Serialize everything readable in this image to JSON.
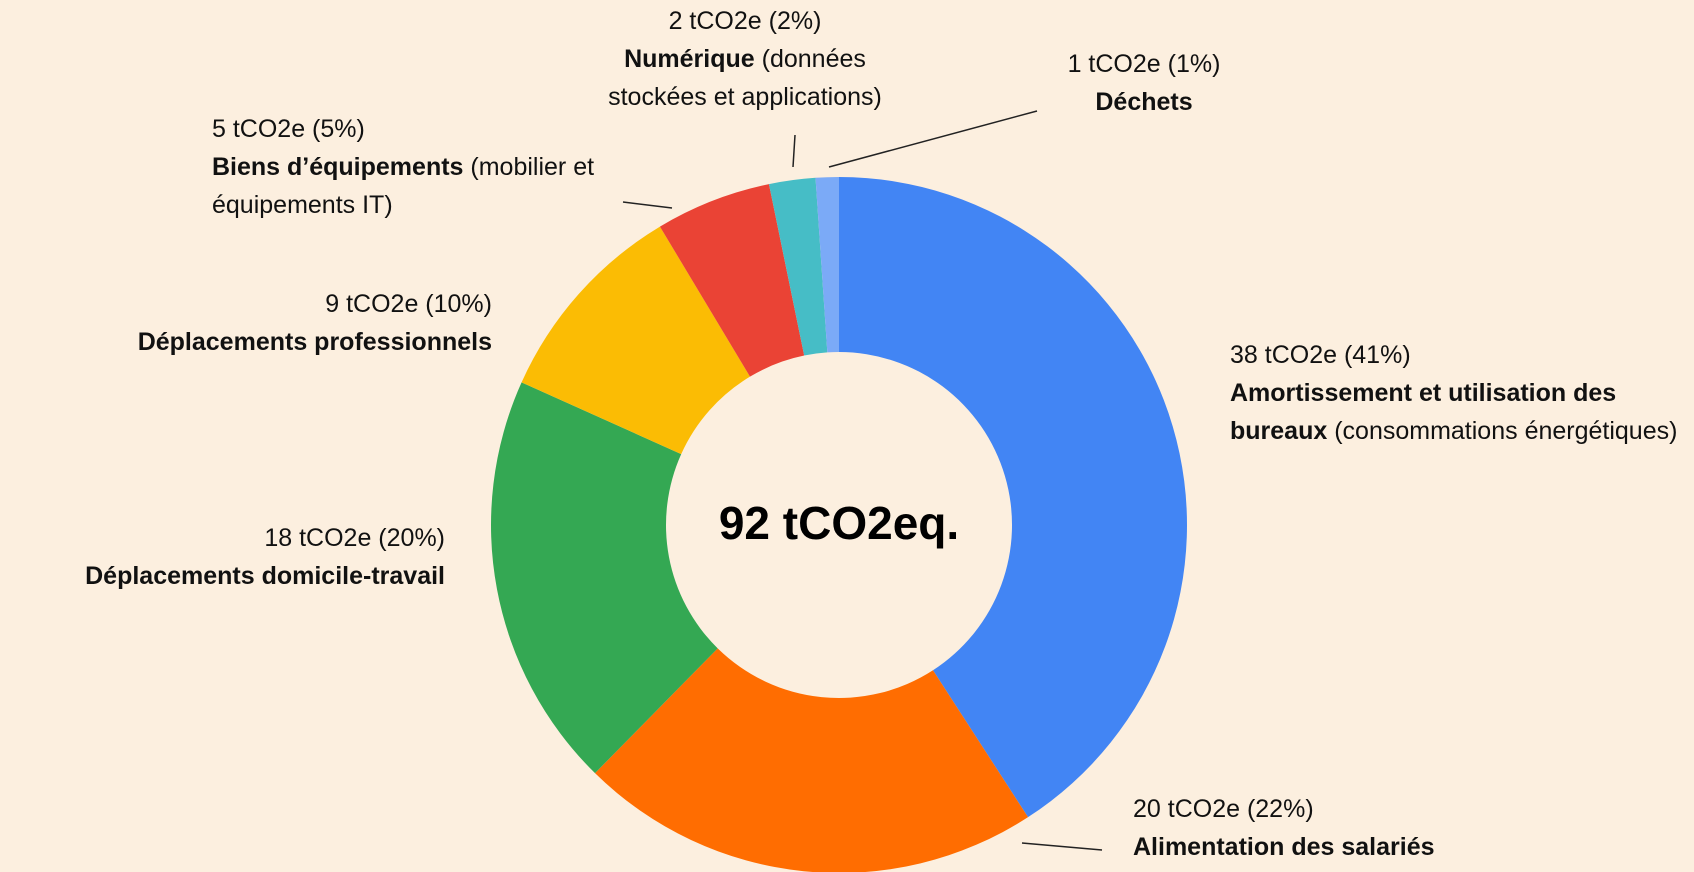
{
  "chart_data": {
    "type": "donut",
    "center_label": "92 tCO2eq.",
    "categories": [
      "Amortissement et utilisation des bureaux",
      "Alimentation des salariés",
      "Déplacements domicile-travail",
      "Déplacements professionnels",
      "Biens d’équipements",
      "Numérique",
      "Déchets"
    ],
    "descriptions": [
      "(consommations énergétiques)",
      null,
      null,
      null,
      "(mobilier et équipements IT)",
      "(données stockées et applications)",
      null
    ],
    "values": [
      38,
      20,
      18,
      9,
      5,
      2,
      1
    ],
    "value_labels": [
      "38 tCO2e (41%)",
      "20 tCO2e (22%)",
      "18 tCO2e (20%)",
      "9 tCO2e (10%)",
      "5 tCO2e (5%)",
      "2 tCO2e (2%)",
      "1 tCO2e (1%)"
    ],
    "colors": [
      "#4285f4",
      "#ff6d01",
      "#34a853",
      "#fbbc04",
      "#ea4335",
      "#46bdc6",
      "#7baaf7"
    ]
  }
}
